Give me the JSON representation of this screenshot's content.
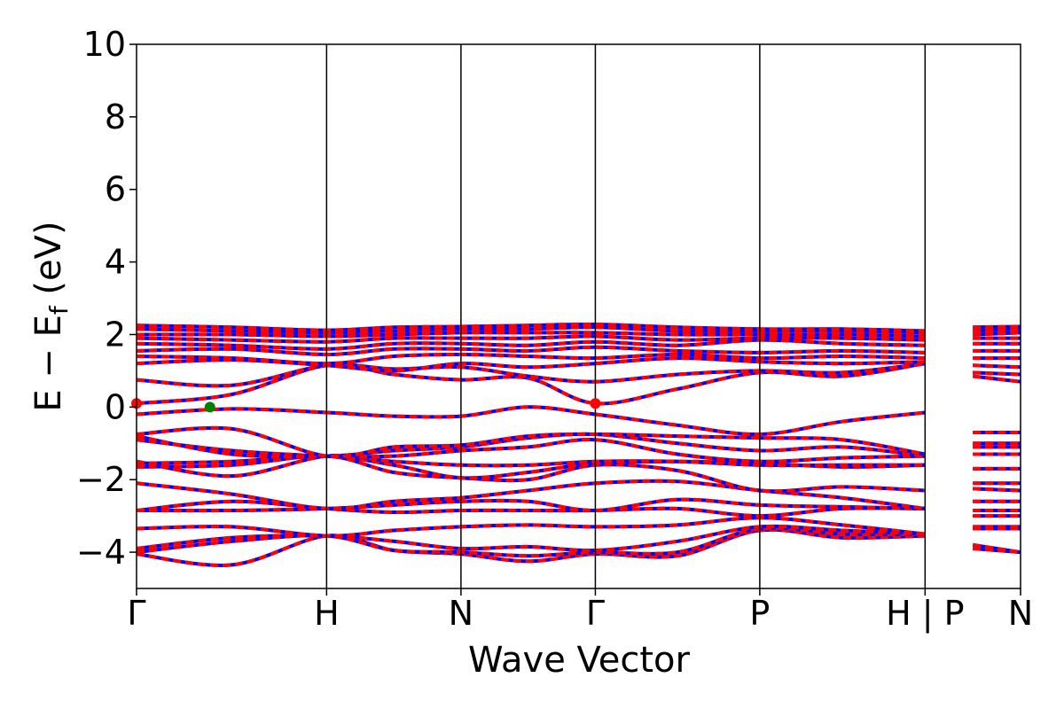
{
  "chart_data": {
    "type": "line",
    "title": "",
    "xlabel": "Wave Vector",
    "ylabel": {
      "prefix": "E  −  E",
      "subscript": "f",
      "suffix": " (eV)"
    },
    "ylim": [
      -5,
      10
    ],
    "yticks": [
      -4,
      -2,
      0,
      2,
      4,
      6,
      8,
      10
    ],
    "ytick_labels": [
      "−4",
      "−2",
      "0",
      "2",
      "4",
      "6",
      "8",
      "10"
    ],
    "xlim": [
      0,
      1
    ],
    "high_symmetry_points": [
      {
        "label": "Γ",
        "x": 0.0
      },
      {
        "label": "H",
        "x": 0.215
      },
      {
        "label": "N",
        "x": 0.367
      },
      {
        "label": "Γ",
        "x": 0.519
      },
      {
        "label": "P",
        "x": 0.705
      },
      {
        "label": "H | P",
        "x": 0.892
      },
      {
        "label": "N",
        "x": 1.0
      }
    ],
    "grid": false,
    "legend": "none",
    "colors": {
      "spin_up": "#ff0000",
      "spin_down": "#0000ff",
      "vbm_marker": "#008000",
      "cbm_marker": "#ff0000"
    },
    "band_knots_x": [
      0.0,
      0.108,
      0.215,
      0.291,
      0.367,
      0.443,
      0.519,
      0.612,
      0.705,
      0.798,
      0.892,
      0.893,
      0.946,
      1.0
    ],
    "bands": [
      [
        -4.05,
        -4.35,
        -3.55,
        -3.95,
        -4.05,
        -4.25,
        -4.05,
        -4.1,
        -3.4,
        -3.6,
        -3.55,
        null,
        -3.9,
        -4.0
      ],
      [
        -4.0,
        -3.7,
        -3.55,
        -3.95,
        -4.0,
        -4.1,
        -4.0,
        -4.0,
        -3.35,
        -3.5,
        -3.5,
        null,
        -3.8,
        -4.0
      ],
      [
        -3.9,
        -3.6,
        -3.55,
        -3.7,
        -3.9,
        -3.85,
        -3.95,
        -3.7,
        -3.3,
        -3.4,
        -3.5,
        null,
        -3.35,
        -3.35
      ],
      [
        -3.35,
        -3.3,
        -3.55,
        -3.4,
        -3.3,
        -3.25,
        -3.3,
        -3.25,
        -3.05,
        -3.25,
        -3.5,
        null,
        -3.3,
        -3.3
      ],
      [
        -2.85,
        -2.6,
        -2.8,
        -2.9,
        -2.85,
        -2.85,
        -2.85,
        -2.8,
        -3.0,
        -2.8,
        -2.8,
        null,
        -3.0,
        -3.0
      ],
      [
        -2.85,
        -2.85,
        -2.8,
        -2.7,
        -2.6,
        -2.6,
        -2.85,
        -2.55,
        -2.7,
        -2.75,
        -2.8,
        null,
        -2.85,
        -2.85
      ],
      [
        -2.1,
        -2.4,
        -2.8,
        -2.6,
        -2.5,
        -2.3,
        -2.1,
        -2.05,
        -2.3,
        -2.5,
        -2.8,
        null,
        -2.6,
        -2.6
      ],
      [
        -1.65,
        -1.6,
        -1.35,
        -1.8,
        -1.95,
        -2.0,
        -1.6,
        -1.75,
        -2.3,
        -2.2,
        -2.3,
        null,
        -2.25,
        -2.3
      ],
      [
        -1.55,
        -1.5,
        -1.35,
        -1.6,
        -1.95,
        -1.8,
        -1.55,
        -1.5,
        -1.55,
        -1.65,
        -1.6,
        null,
        -2.1,
        -2.1
      ],
      [
        -1.5,
        -1.9,
        -1.35,
        -1.5,
        -1.6,
        -1.6,
        -1.5,
        -1.5,
        -1.6,
        -1.6,
        -1.6,
        null,
        -1.7,
        -1.7
      ],
      [
        -0.9,
        -1.2,
        -1.35,
        -1.35,
        -1.2,
        -1.1,
        -0.9,
        -1.3,
        -1.5,
        -1.4,
        -1.35,
        null,
        -1.3,
        -1.3
      ],
      [
        -0.8,
        -1.3,
        -1.35,
        -1.2,
        -1.1,
        -0.85,
        -0.75,
        -1.0,
        -1.2,
        -1.1,
        -1.35,
        null,
        -1.1,
        -1.1
      ],
      [
        -0.75,
        -0.6,
        -1.35,
        -1.1,
        -1.05,
        -0.8,
        -0.75,
        -0.8,
        -0.85,
        -0.9,
        -1.3,
        null,
        -1.0,
        -1.0
      ],
      [
        -0.2,
        -0.05,
        -0.15,
        -0.25,
        -0.25,
        0.0,
        -0.2,
        -0.5,
        -0.75,
        -0.4,
        -0.15,
        null,
        -0.7,
        -0.7
      ],
      [
        0.1,
        0.35,
        1.15,
        0.9,
        0.75,
        0.8,
        0.1,
        0.5,
        0.95,
        0.85,
        1.2,
        null,
        0.85,
        0.7
      ],
      [
        0.75,
        0.6,
        1.15,
        1.05,
        1.1,
        0.85,
        0.7,
        0.9,
        1.0,
        0.95,
        1.2,
        null,
        0.95,
        0.9
      ],
      [
        1.2,
        1.3,
        1.15,
        1.0,
        1.2,
        1.1,
        1.2,
        1.35,
        1.25,
        1.2,
        1.25,
        null,
        1.15,
        1.1
      ],
      [
        1.4,
        1.35,
        1.2,
        1.4,
        1.45,
        1.4,
        1.35,
        1.45,
        1.35,
        1.4,
        1.35,
        null,
        1.35,
        1.35
      ],
      [
        1.55,
        1.6,
        1.45,
        1.6,
        1.6,
        1.55,
        1.65,
        1.55,
        1.5,
        1.55,
        1.5,
        null,
        1.55,
        1.55
      ],
      [
        1.75,
        1.7,
        1.6,
        1.75,
        1.75,
        1.7,
        1.8,
        1.7,
        1.85,
        1.75,
        1.7,
        null,
        1.75,
        1.75
      ],
      [
        1.9,
        1.85,
        1.8,
        1.9,
        1.9,
        1.9,
        1.95,
        1.85,
        1.9,
        1.9,
        1.85,
        null,
        1.9,
        1.9
      ],
      [
        2.0,
        2.0,
        1.95,
        2.0,
        2.05,
        2.05,
        2.05,
        2.0,
        2.0,
        2.0,
        1.95,
        null,
        2.0,
        2.05
      ],
      [
        2.15,
        2.1,
        2.05,
        2.1,
        2.15,
        2.15,
        2.2,
        2.1,
        2.1,
        2.1,
        2.05,
        null,
        2.1,
        2.15
      ],
      [
        2.25,
        2.2,
        2.12,
        2.2,
        2.22,
        2.25,
        2.28,
        2.2,
        2.15,
        2.15,
        2.1,
        null,
        2.2,
        2.22
      ]
    ],
    "markers": [
      {
        "name": "valence-band-maximum",
        "x": 0.083,
        "y": 0.0,
        "color": "#008000"
      },
      {
        "name": "conduction-band-minimum",
        "x": 0.0,
        "y": 0.1,
        "color": "#ff0000"
      },
      {
        "name": "conduction-band-minimum",
        "x": 0.519,
        "y": 0.1,
        "color": "#ff0000"
      }
    ]
  }
}
